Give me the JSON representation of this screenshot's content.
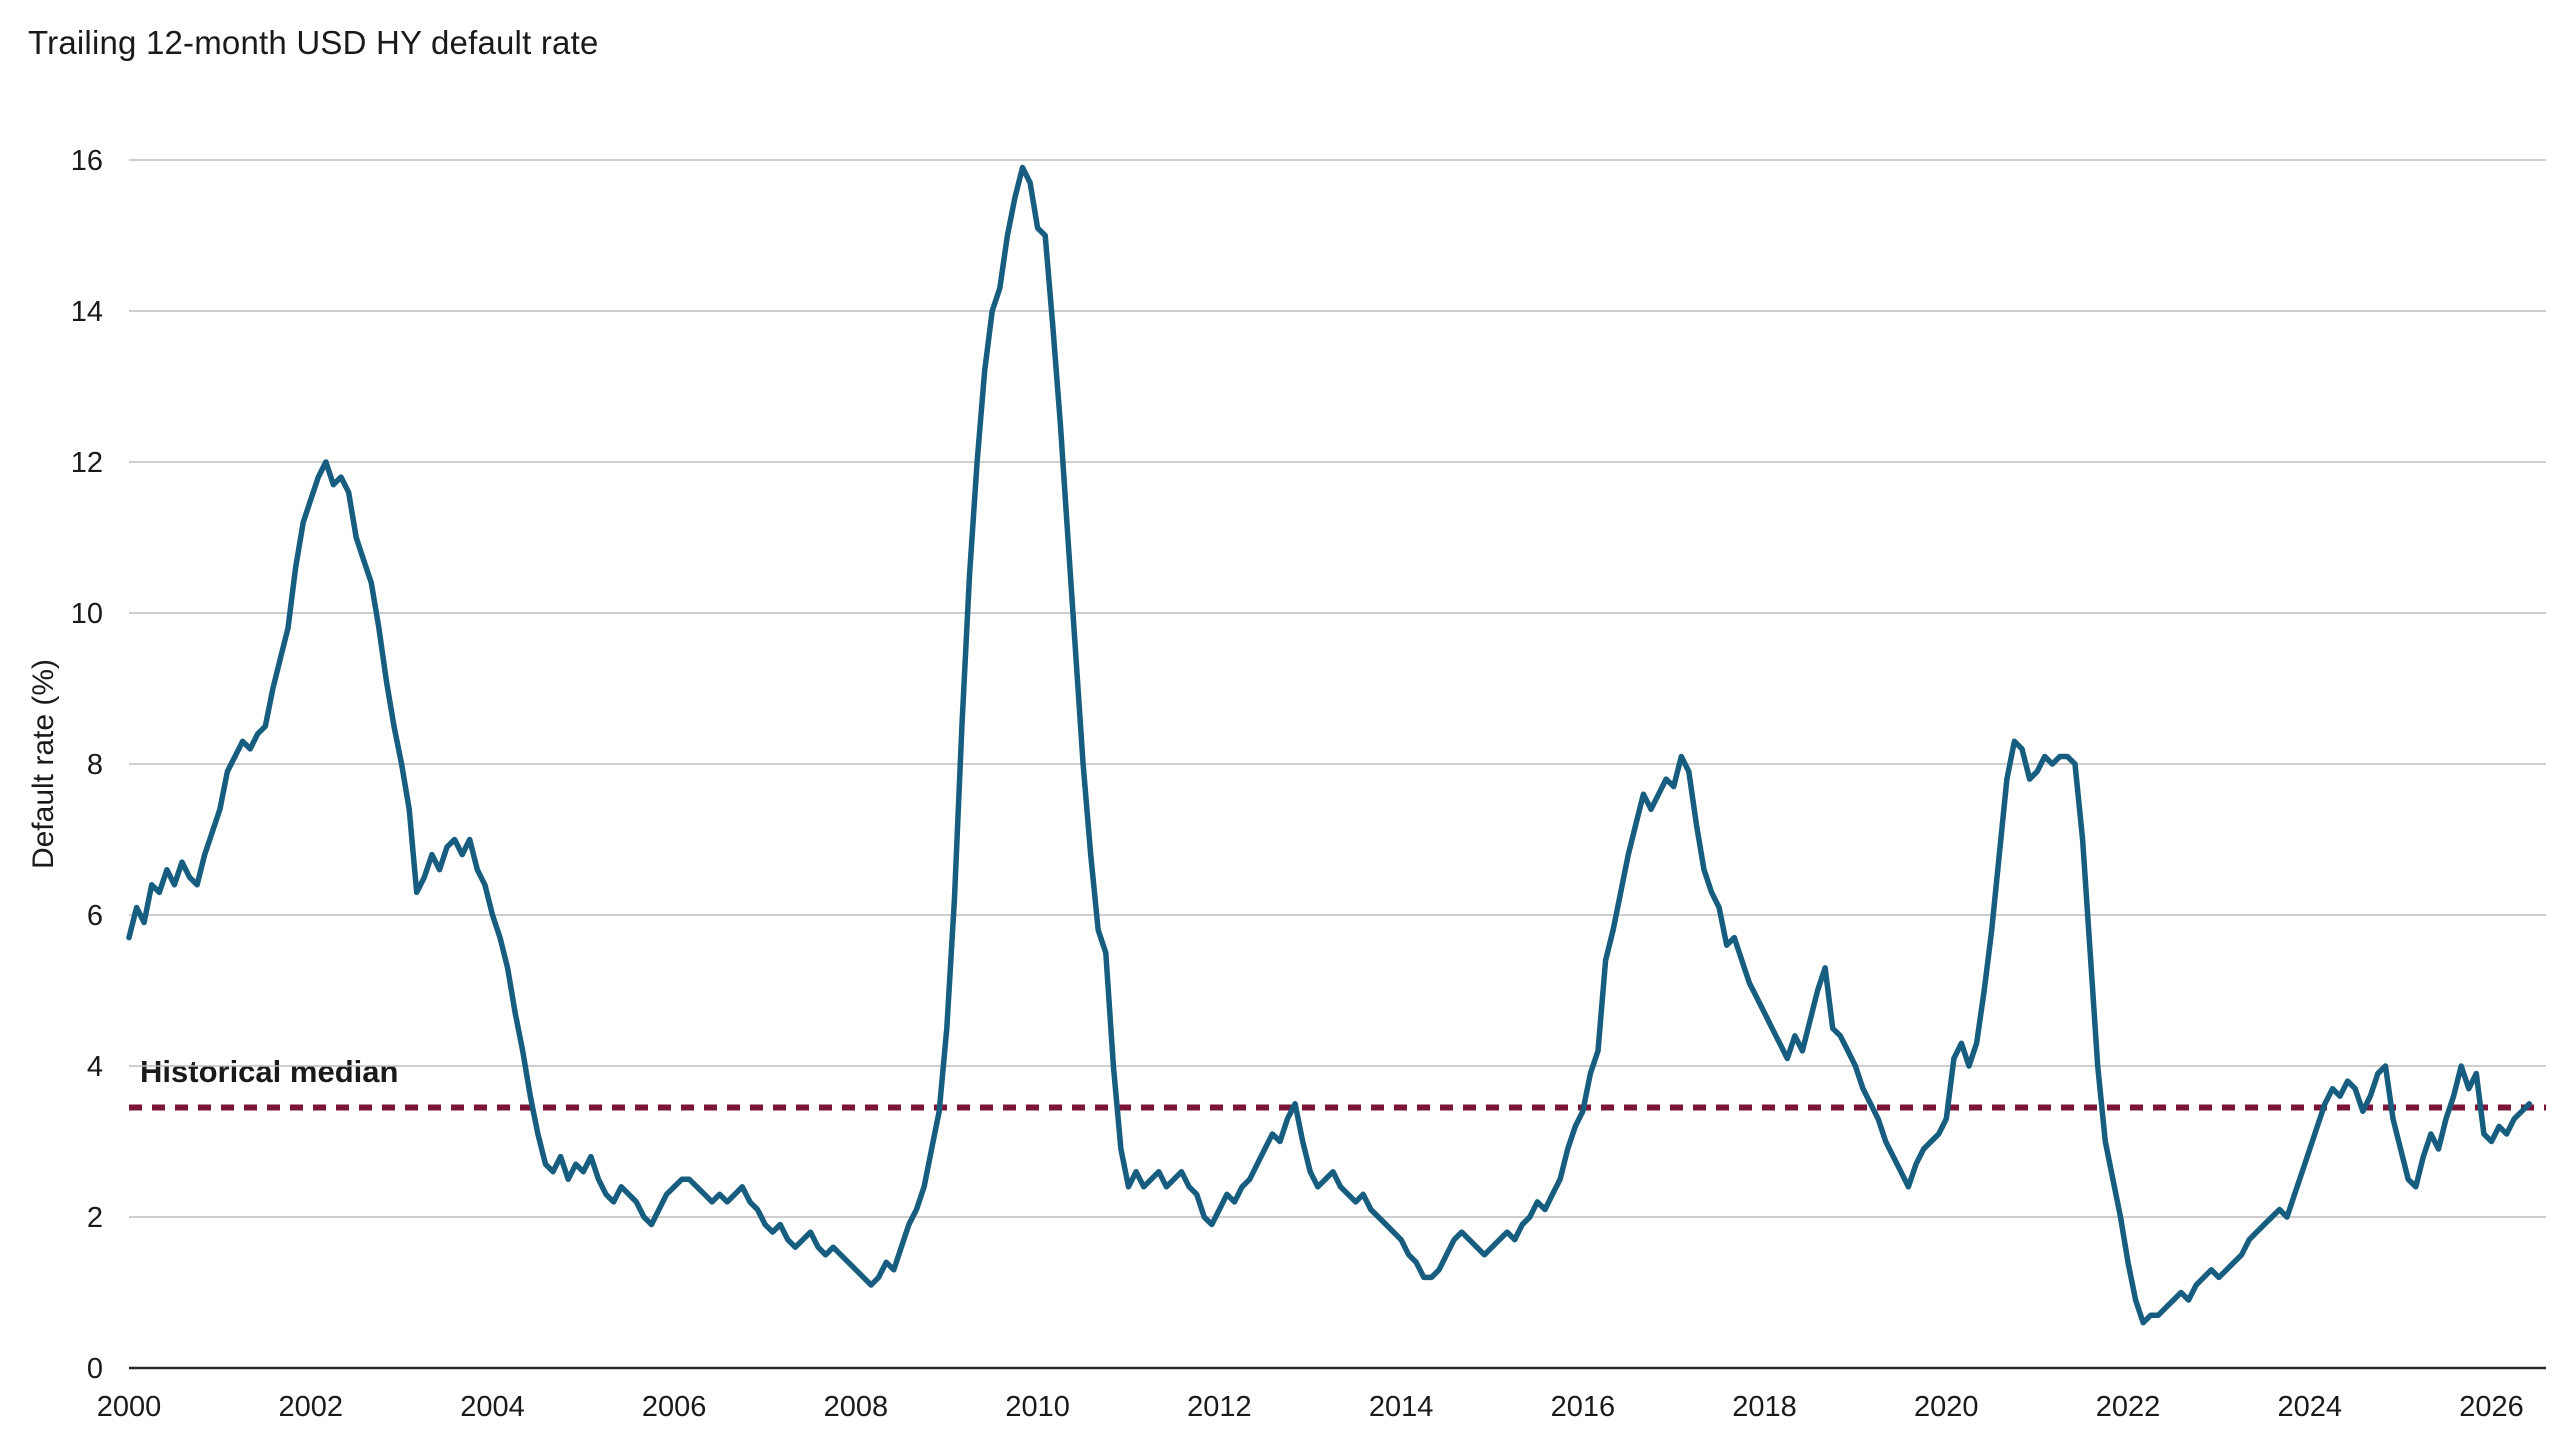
{
  "page": {
    "title": "Trailing 12-month USD HY default rate"
  },
  "chart_data": {
    "type": "line",
    "title": "Trailing 12-month USD HY default rate",
    "xlabel": "",
    "ylabel": "Default rate (%)",
    "xlim": [
      2000,
      2026.6
    ],
    "ylim": [
      0,
      16
    ],
    "x_ticks": [
      2000,
      2002,
      2004,
      2006,
      2008,
      2010,
      2012,
      2014,
      2016,
      2018,
      2020,
      2022,
      2024,
      2026
    ],
    "y_ticks": [
      0,
      2,
      4,
      6,
      8,
      10,
      12,
      14,
      16
    ],
    "grid": "horizontal",
    "legend": "none",
    "colors": {
      "grid": "#bdbdbd",
      "axis": "#2b2b2b",
      "text": "#1a1a1a",
      "background": "#ffffff"
    },
    "series": [
      {
        "name": "Trailing 12-month USD HY default rate",
        "color": "#165d80",
        "start_year": 2000,
        "frequency": "monthly",
        "values": [
          5.7,
          6.1,
          5.9,
          6.4,
          6.3,
          6.6,
          6.4,
          6.7,
          6.5,
          6.4,
          6.8,
          7.1,
          7.4,
          7.9,
          8.1,
          8.3,
          8.2,
          8.4,
          8.5,
          9.0,
          9.4,
          9.8,
          10.6,
          11.2,
          11.5,
          11.8,
          12.0,
          11.7,
          11.8,
          11.6,
          11.0,
          10.7,
          10.4,
          9.8,
          9.1,
          8.5,
          8.0,
          7.4,
          6.3,
          6.5,
          6.8,
          6.6,
          6.9,
          7.0,
          6.8,
          7.0,
          6.6,
          6.4,
          6.0,
          5.7,
          5.3,
          4.7,
          4.2,
          3.6,
          3.1,
          2.7,
          2.6,
          2.8,
          2.5,
          2.7,
          2.6,
          2.8,
          2.5,
          2.3,
          2.2,
          2.4,
          2.3,
          2.2,
          2.0,
          1.9,
          2.1,
          2.3,
          2.4,
          2.5,
          2.5,
          2.4,
          2.3,
          2.2,
          2.3,
          2.2,
          2.3,
          2.4,
          2.2,
          2.1,
          1.9,
          1.8,
          1.9,
          1.7,
          1.6,
          1.7,
          1.8,
          1.6,
          1.5,
          1.6,
          1.5,
          1.4,
          1.3,
          1.2,
          1.1,
          1.2,
          1.4,
          1.3,
          1.6,
          1.9,
          2.1,
          2.4,
          2.9,
          3.4,
          4.5,
          6.2,
          8.5,
          10.5,
          12.0,
          13.2,
          14.0,
          14.3,
          15.0,
          15.5,
          15.9,
          15.7,
          15.1,
          15.0,
          13.8,
          12.5,
          11.0,
          9.5,
          8.0,
          6.8,
          5.8,
          5.5,
          4.0,
          2.9,
          2.4,
          2.6,
          2.4,
          2.5,
          2.6,
          2.4,
          2.5,
          2.6,
          2.4,
          2.3,
          2.0,
          1.9,
          2.1,
          2.3,
          2.2,
          2.4,
          2.5,
          2.7,
          2.9,
          3.1,
          3.0,
          3.3,
          3.5,
          3.0,
          2.6,
          2.4,
          2.5,
          2.6,
          2.4,
          2.3,
          2.2,
          2.3,
          2.1,
          2.0,
          1.9,
          1.8,
          1.7,
          1.5,
          1.4,
          1.2,
          1.2,
          1.3,
          1.5,
          1.7,
          1.8,
          1.7,
          1.6,
          1.5,
          1.6,
          1.7,
          1.8,
          1.7,
          1.9,
          2.0,
          2.2,
          2.1,
          2.3,
          2.5,
          2.9,
          3.2,
          3.4,
          3.9,
          4.2,
          5.4,
          5.8,
          6.3,
          6.8,
          7.2,
          7.6,
          7.4,
          7.6,
          7.8,
          7.7,
          8.1,
          7.9,
          7.2,
          6.6,
          6.3,
          6.1,
          5.6,
          5.7,
          5.4,
          5.1,
          4.9,
          4.7,
          4.5,
          4.3,
          4.1,
          4.4,
          4.2,
          4.6,
          5.0,
          5.3,
          4.5,
          4.4,
          4.2,
          4.0,
          3.7,
          3.5,
          3.3,
          3.0,
          2.8,
          2.6,
          2.4,
          2.7,
          2.9,
          3.0,
          3.1,
          3.3,
          4.1,
          4.3,
          4.0,
          4.3,
          5.0,
          5.8,
          6.8,
          7.8,
          8.3,
          8.2,
          7.8,
          7.9,
          8.1,
          8.0,
          8.1,
          8.1,
          8.0,
          7.0,
          5.5,
          4.0,
          3.0,
          2.5,
          2.0,
          1.4,
          0.9,
          0.6,
          0.7,
          0.7,
          0.8,
          0.9,
          1.0,
          0.9,
          1.1,
          1.2,
          1.3,
          1.2,
          1.3,
          1.4,
          1.5,
          1.7,
          1.8,
          1.9,
          2.0,
          2.1,
          2.0,
          2.3,
          2.6,
          2.9,
          3.2,
          3.5,
          3.7,
          3.6,
          3.8,
          3.7,
          3.4,
          3.6,
          3.9,
          4.0,
          3.3,
          2.9,
          2.5,
          2.4,
          2.8,
          3.1,
          2.9,
          3.3,
          3.6,
          4.0,
          3.7,
          3.9,
          3.1,
          3.0,
          3.2,
          3.1,
          3.3,
          3.4,
          3.5
        ]
      }
    ],
    "annotations": [
      {
        "type": "horizontal_dashed_line",
        "label": "Historical median",
        "y": 3.45,
        "color": "#7a1537"
      }
    ]
  }
}
